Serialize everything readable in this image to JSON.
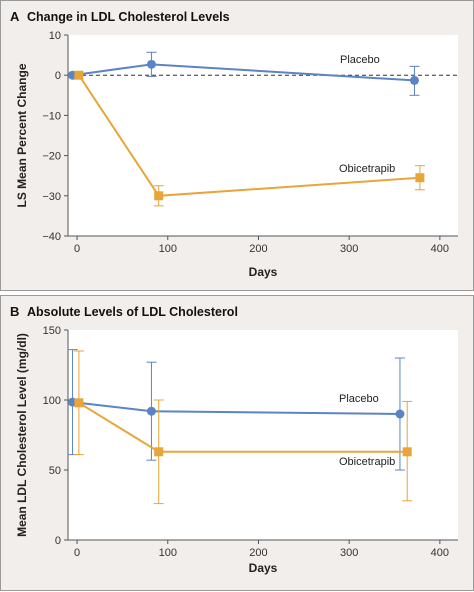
{
  "chart_data": [
    {
      "panel": "A",
      "title": "Change in LDL Cholesterol Levels",
      "type": "line",
      "xlabel": "Days",
      "ylabel": "LS Mean Percent Change",
      "xlim": [
        -10,
        420
      ],
      "ylim": [
        -40,
        10
      ],
      "xticks": [
        0,
        100,
        200,
        300,
        400
      ],
      "yticks": [
        10,
        0,
        -10,
        -20,
        -30,
        -40
      ],
      "reference_line": 0,
      "series": [
        {
          "name": "Placebo",
          "color": "#5b84c4",
          "marker": "circle",
          "points": [
            {
              "x": -5,
              "y": 0,
              "err_lo": 0,
              "err_hi": 0
            },
            {
              "x": 82,
              "y": 2.7,
              "err_lo": -0.3,
              "err_hi": 5.7
            },
            {
              "x": 372,
              "y": -1.3,
              "err_lo": -5,
              "err_hi": 2.2
            }
          ]
        },
        {
          "name": "Obicetrapib",
          "color": "#e9a43a",
          "marker": "square",
          "points": [
            {
              "x": 2,
              "y": 0,
              "err_lo": 0,
              "err_hi": 0
            },
            {
              "x": 90,
              "y": -30,
              "err_lo": -32.5,
              "err_hi": -27.5
            },
            {
              "x": 378,
              "y": -25.5,
              "err_lo": -28.5,
              "err_hi": -22.5
            }
          ]
        }
      ]
    },
    {
      "panel": "B",
      "title": "Absolute Levels of LDL Cholesterol",
      "type": "line",
      "xlabel": "Days",
      "ylabel": "Mean LDL Cholesterol Level (mg/dl)",
      "xlim": [
        -10,
        420
      ],
      "ylim": [
        0,
        150
      ],
      "xticks": [
        0,
        100,
        200,
        300,
        400
      ],
      "yticks": [
        150,
        100,
        50,
        0
      ],
      "series": [
        {
          "name": "Placebo",
          "color": "#5b84c4",
          "marker": "circle",
          "points": [
            {
              "x": -5,
              "y": 98.5,
              "err_lo": 61,
              "err_hi": 136
            },
            {
              "x": 82,
              "y": 92,
              "err_lo": 57,
              "err_hi": 127
            },
            {
              "x": 356,
              "y": 90,
              "err_lo": 50,
              "err_hi": 130
            }
          ]
        },
        {
          "name": "Obicetrapib",
          "color": "#e9a43a",
          "marker": "square",
          "points": [
            {
              "x": 2,
              "y": 98,
              "err_lo": 61,
              "err_hi": 135
            },
            {
              "x": 90,
              "y": 63,
              "err_lo": 26,
              "err_hi": 100
            },
            {
              "x": 364,
              "y": 63,
              "err_lo": 28,
              "err_hi": 99
            }
          ]
        }
      ]
    }
  ]
}
